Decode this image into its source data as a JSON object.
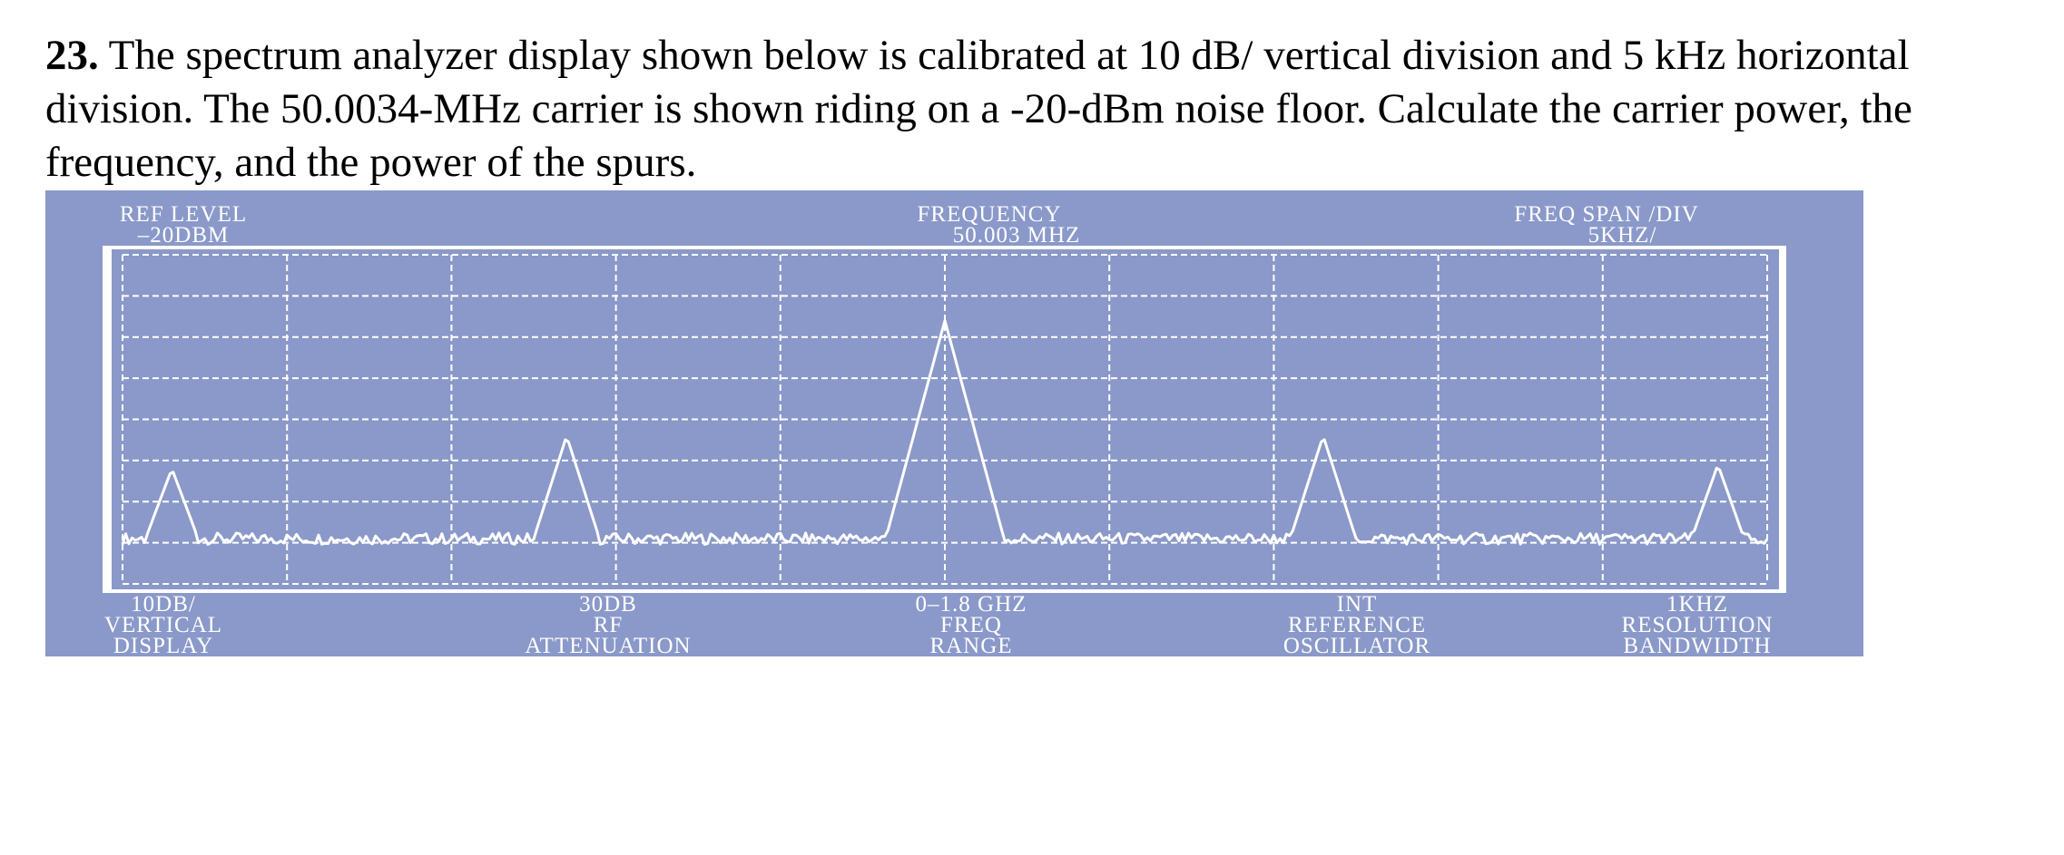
{
  "question": {
    "number": "23.",
    "text": "The spectrum analyzer display shown below is calibrated at 10 dB/ vertical division and 5 kHz horizontal division. The 50.0034-MHz carrier is shown riding on a -20-dBm noise floor. Calculate the carrier power, the frequency, and the power of the spurs."
  },
  "analyzer": {
    "colors": {
      "panel": "#8a99c9",
      "trace": "#ffffff",
      "grid": "#ffffff"
    },
    "top_labels": [
      {
        "line1": "REF LEVEL",
        "line2": "–20DBM"
      },
      {
        "line1": "FREQUENCY",
        "line2": "50.003 MHZ"
      },
      {
        "line1": "FREQ SPAN /DIV",
        "line2": "5KHZ/"
      }
    ],
    "bottom_labels": [
      {
        "line1": "10DB/",
        "line2": "VERTICAL",
        "line3": "DISPLAY"
      },
      {
        "line1": "30DB",
        "line2": "RF",
        "line3": "ATTENUATION"
      },
      {
        "line1": "0–1.8 GHZ",
        "line2": "FREQ",
        "line3": "RANGE"
      },
      {
        "line1": "INT",
        "line2": "REFERENCE",
        "line3": "OSCILLATOR"
      },
      {
        "line1": "1KHZ",
        "line2": "RESOLUTION",
        "line3": "BANDWIDTH"
      }
    ]
  },
  "chart_data": {
    "type": "line",
    "grid": {
      "x_divisions": 10,
      "y_divisions": 8,
      "style": "dashed"
    },
    "trace": {
      "noise_floor_div": 1.1,
      "peaks": [
        {
          "center_div": 0.3,
          "height_div": 2.8,
          "half_width_div": 0.16
        },
        {
          "center_div": 2.7,
          "height_div": 3.6,
          "half_width_div": 0.2
        },
        {
          "center_div": 5.0,
          "height_div": 6.4,
          "half_width_div": 0.36
        },
        {
          "center_div": 7.3,
          "height_div": 3.6,
          "half_width_div": 0.2
        },
        {
          "center_div": 9.7,
          "height_div": 2.9,
          "half_width_div": 0.16
        }
      ]
    }
  }
}
